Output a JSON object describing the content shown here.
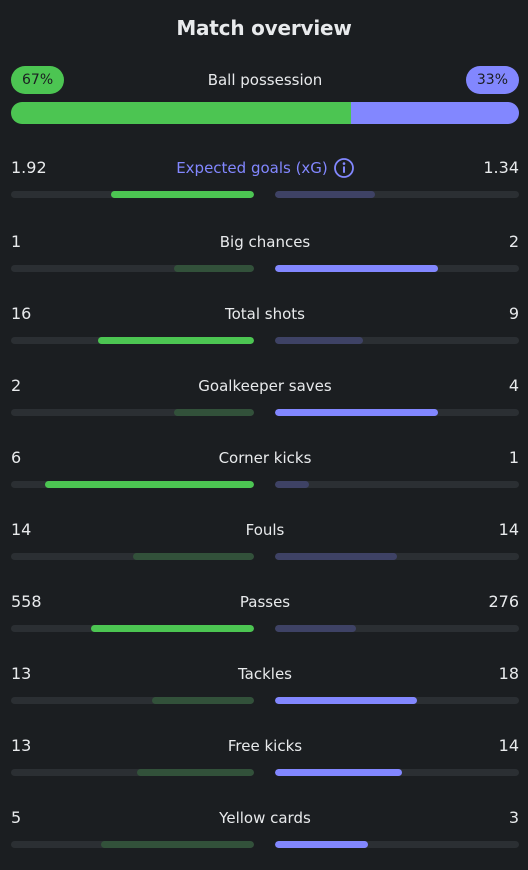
{
  "title": "Match overview",
  "possession": {
    "label": "Ball possession",
    "home": "67%",
    "away": "33%",
    "home_fraction": 0.67
  },
  "colors": {
    "home": "#4cc552",
    "away": "#8287ff",
    "home_dim": "#32513a",
    "away_dim": "#3e4265",
    "track": "#2b2f33",
    "background": "#1b1e21"
  },
  "stats": [
    {
      "label": "Expected goals (xG)",
      "home": "1.92",
      "away": "1.34",
      "home_fill": 0.59,
      "away_fill": 0.41,
      "winner": "home",
      "info": true
    },
    {
      "label": "Big chances",
      "home": "1",
      "away": "2",
      "home_fill": 0.33,
      "away_fill": 0.67,
      "winner": "away"
    },
    {
      "label": "Total shots",
      "home": "16",
      "away": "9",
      "home_fill": 0.64,
      "away_fill": 0.36,
      "winner": "home"
    },
    {
      "label": "Goalkeeper saves",
      "home": "2",
      "away": "4",
      "home_fill": 0.33,
      "away_fill": 0.67,
      "winner": "away"
    },
    {
      "label": "Corner kicks",
      "home": "6",
      "away": "1",
      "home_fill": 0.86,
      "away_fill": 0.14,
      "winner": "home"
    },
    {
      "label": "Fouls",
      "home": "14",
      "away": "14",
      "home_fill": 0.5,
      "away_fill": 0.5,
      "winner": "none"
    },
    {
      "label": "Passes",
      "home": "558",
      "away": "276",
      "home_fill": 0.67,
      "away_fill": 0.33,
      "winner": "home"
    },
    {
      "label": "Tackles",
      "home": "13",
      "away": "18",
      "home_fill": 0.42,
      "away_fill": 0.58,
      "winner": "away"
    },
    {
      "label": "Free kicks",
      "home": "13",
      "away": "14",
      "home_fill": 0.48,
      "away_fill": 0.52,
      "winner": "away"
    },
    {
      "label": "Yellow cards",
      "home": "5",
      "away": "3",
      "home_fill": 0.63,
      "away_fill": 0.38,
      "winner": "away"
    }
  ]
}
